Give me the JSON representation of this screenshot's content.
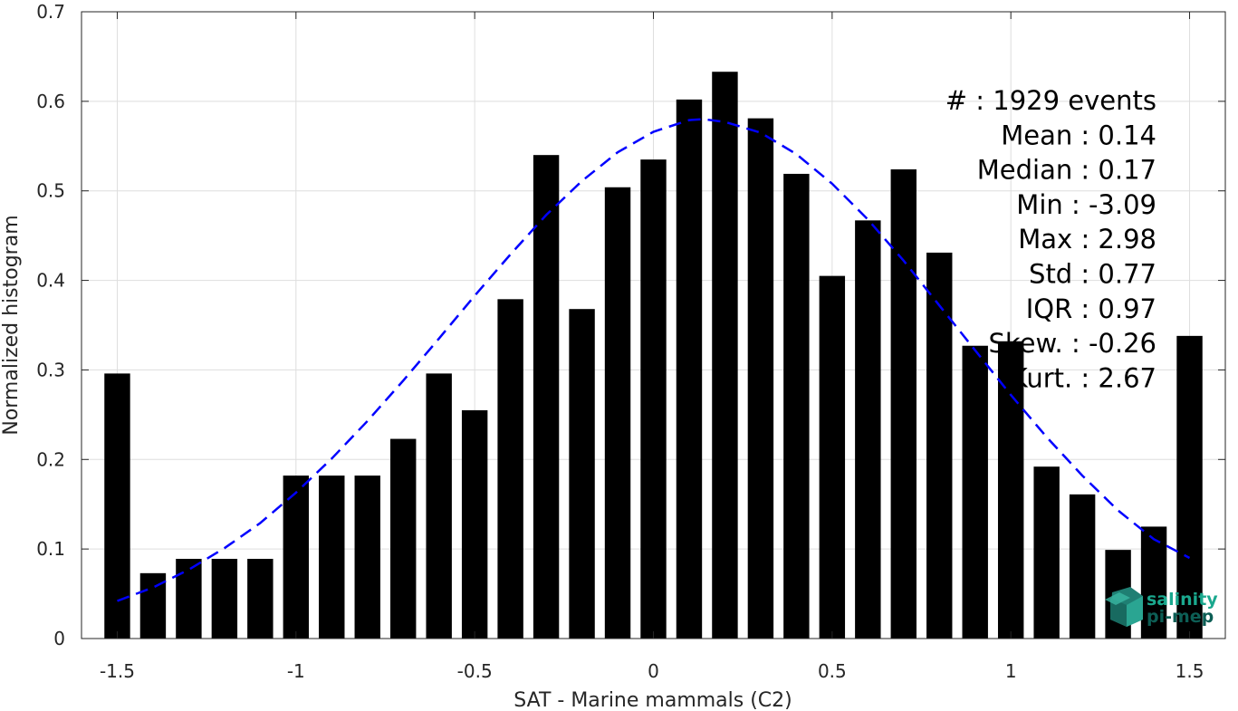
{
  "chart_data": {
    "type": "bar",
    "xlabel": "SAT - Marine mammals (C2)",
    "ylabel": "Normalized histogram",
    "xlim": [
      -1.6,
      1.6
    ],
    "ylim": [
      0,
      0.7
    ],
    "xticks": [
      -1.5,
      -1,
      -0.5,
      0,
      0.5,
      1,
      1.5
    ],
    "xtick_labels": [
      "-1.5",
      "-1",
      "-0.5",
      "0",
      "0.5",
      "1",
      "1.5"
    ],
    "yticks": [
      0,
      0.1,
      0.2,
      0.3,
      0.4,
      0.5,
      0.6,
      0.7
    ],
    "ytick_labels": [
      "0",
      "0.1",
      "0.2",
      "0.3",
      "0.4",
      "0.5",
      "0.6",
      "0.7"
    ],
    "grid": true,
    "bar_color": "#000000",
    "bin_width": 0.1,
    "x": [
      -1.5,
      -1.4,
      -1.3,
      -1.2,
      -1.1,
      -1.0,
      -0.9,
      -0.8,
      -0.7,
      -0.6,
      -0.5,
      -0.4,
      -0.3,
      -0.2,
      -0.1,
      0.0,
      0.1,
      0.2,
      0.3,
      0.4,
      0.5,
      0.6,
      0.7,
      0.8,
      0.9,
      1.0,
      1.1,
      1.2,
      1.3,
      1.4,
      1.5
    ],
    "values": [
      0.296,
      0.073,
      0.089,
      0.089,
      0.089,
      0.182,
      0.182,
      0.182,
      0.223,
      0.296,
      0.255,
      0.379,
      0.54,
      0.368,
      0.504,
      0.535,
      0.602,
      0.633,
      0.581,
      0.519,
      0.405,
      0.467,
      0.524,
      0.431,
      0.327,
      0.332,
      0.192,
      0.161,
      0.099,
      0.125,
      0.338
    ],
    "fit_curve": {
      "style": "dashed",
      "color": "#0000ff",
      "x": [
        -1.5,
        -1.4,
        -1.3,
        -1.2,
        -1.1,
        -1.0,
        -0.9,
        -0.8,
        -0.7,
        -0.6,
        -0.5,
        -0.4,
        -0.3,
        -0.2,
        -0.1,
        0.0,
        0.1,
        0.14,
        0.2,
        0.3,
        0.4,
        0.5,
        0.6,
        0.7,
        0.8,
        0.9,
        1.0,
        1.1,
        1.2,
        1.3,
        1.4,
        1.5
      ],
      "y": [
        0.042,
        0.057,
        0.077,
        0.101,
        0.129,
        0.163,
        0.201,
        0.243,
        0.288,
        0.335,
        0.383,
        0.429,
        0.473,
        0.511,
        0.543,
        0.566,
        0.579,
        0.58,
        0.577,
        0.565,
        0.541,
        0.508,
        0.468,
        0.422,
        0.372,
        0.322,
        0.272,
        0.225,
        0.182,
        0.143,
        0.111,
        0.09
      ]
    }
  },
  "stats": [
    "#  : 1929 events",
    "Mean : 0.14",
    "Median : 0.17",
    "Min : -3.09",
    "Max : 2.98",
    "Std : 0.77",
    "IQR : 0.97",
    "Skew. : -0.26",
    "Kurt. : 2.67"
  ],
  "logo": {
    "line1": "salinity",
    "line2": "pi-mep",
    "color1": "#1aa88e",
    "color2": "#0d5e55"
  }
}
